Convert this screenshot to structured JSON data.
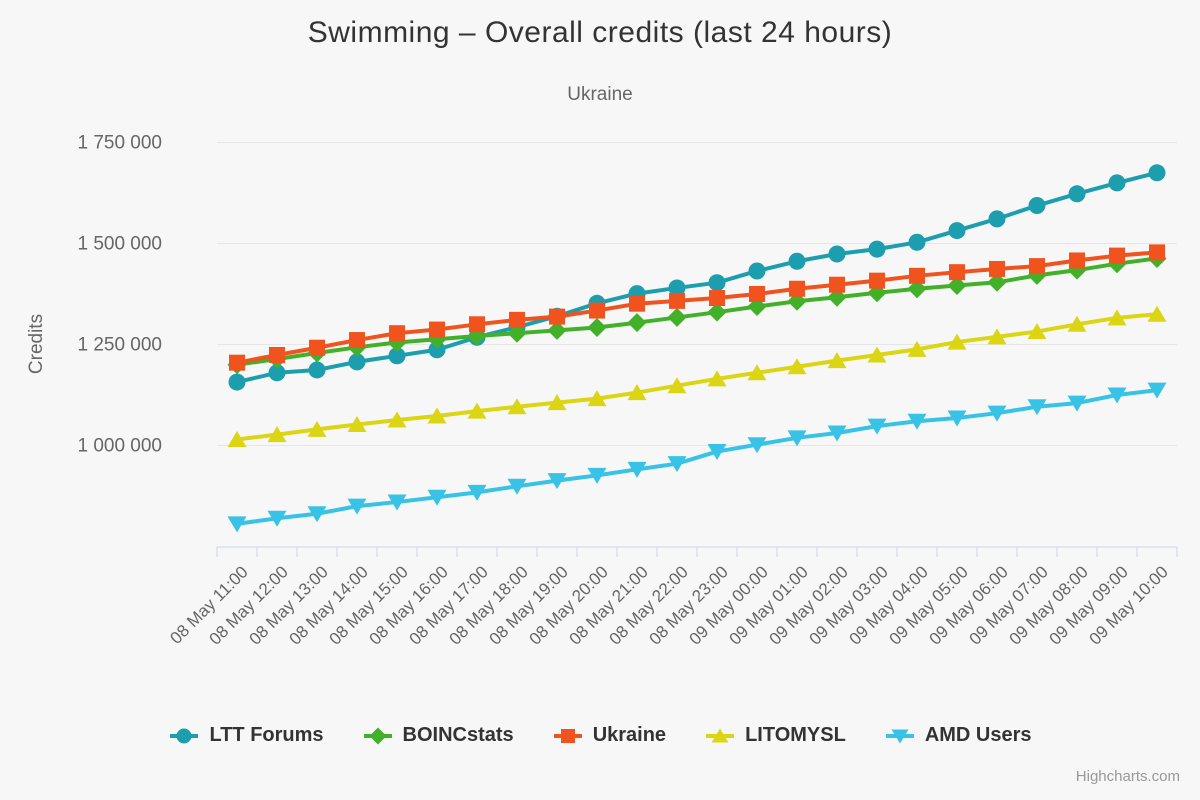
{
  "chart": {
    "credit": "Highcharts.com"
  },
  "colors": {
    "background": "#f7f7f7",
    "gridline": "#e6e6e6",
    "axis_line": "#ccd6eb",
    "tick_mark": "#ccd6eb",
    "title_text": "#333333",
    "subtitle_text": "#666666",
    "axis_label_text": "#666666",
    "legend_text": "#333333",
    "credit_text": "#999999"
  },
  "chart_data": {
    "type": "line",
    "title": "Swimming – Overall credits (last 24 hours)",
    "subtitle": "Ukraine",
    "xlabel": "",
    "ylabel": "Credits",
    "grid": "horizontal",
    "legend_position": "bottom",
    "ylim": [
      750000,
      1810000
    ],
    "y_ticks": [
      {
        "value": 1000000,
        "label": "1 000 000"
      },
      {
        "value": 1250000,
        "label": "1 250 000"
      },
      {
        "value": 1500000,
        "label": "1 500 000"
      },
      {
        "value": 1750000,
        "label": "1 750 000"
      }
    ],
    "categories": [
      "08 May 11:00",
      "08 May 12:00",
      "08 May 13:00",
      "08 May 14:00",
      "08 May 15:00",
      "08 May 16:00",
      "08 May 17:00",
      "08 May 18:00",
      "08 May 19:00",
      "08 May 20:00",
      "08 May 21:00",
      "08 May 22:00",
      "08 May 23:00",
      "09 May 00:00",
      "09 May 01:00",
      "09 May 02:00",
      "09 May 03:00",
      "09 May 04:00",
      "09 May 05:00",
      "09 May 06:00",
      "09 May 07:00",
      "09 May 08:00",
      "09 May 09:00",
      "09 May 10:00"
    ],
    "series": [
      {
        "name": "LTT Forums",
        "color": "#1d9eae",
        "marker": "circle",
        "values": [
          1157000,
          1180000,
          1187000,
          1207000,
          1222000,
          1237000,
          1268000,
          1293000,
          1320000,
          1352000,
          1376000,
          1390000,
          1403000,
          1432000,
          1456000,
          1474000,
          1486000,
          1503000,
          1532000,
          1561000,
          1594000,
          1623000,
          1650000,
          1675000
        ]
      },
      {
        "name": "BOINCstats",
        "color": "#43b02a",
        "marker": "diamond",
        "values": [
          1200000,
          1214000,
          1229000,
          1243000,
          1255000,
          1263000,
          1271000,
          1278000,
          1285000,
          1292000,
          1304000,
          1317000,
          1330000,
          1344000,
          1357000,
          1367000,
          1378000,
          1388000,
          1396000,
          1404000,
          1421000,
          1434000,
          1450000,
          1463000
        ]
      },
      {
        "name": "Ukraine",
        "color": "#f0531d",
        "marker": "square",
        "values": [
          1205000,
          1224000,
          1242000,
          1261000,
          1278000,
          1287000,
          1300000,
          1311000,
          1319000,
          1334000,
          1351000,
          1358000,
          1365000,
          1375000,
          1388000,
          1398000,
          1408000,
          1420000,
          1429000,
          1437000,
          1444000,
          1458000,
          1470000,
          1478000
        ]
      },
      {
        "name": "LITOMYSL",
        "color": "#dbd513",
        "marker": "triangle-up",
        "values": [
          1015000,
          1027000,
          1040000,
          1052000,
          1063000,
          1073000,
          1085000,
          1096000,
          1106000,
          1116000,
          1131000,
          1148000,
          1165000,
          1180000,
          1195000,
          1210000,
          1224000,
          1238000,
          1256000,
          1269000,
          1282000,
          1300000,
          1316000,
          1325000
        ]
      },
      {
        "name": "AMD Users",
        "color": "#38c3e6",
        "marker": "triangle-down",
        "values": [
          806000,
          820000,
          831000,
          850000,
          860000,
          872000,
          884000,
          899000,
          913000,
          926000,
          941000,
          955000,
          985000,
          1002000,
          1019000,
          1031000,
          1048000,
          1060000,
          1068000,
          1080000,
          1096000,
          1105000,
          1125000,
          1137000
        ]
      }
    ]
  }
}
